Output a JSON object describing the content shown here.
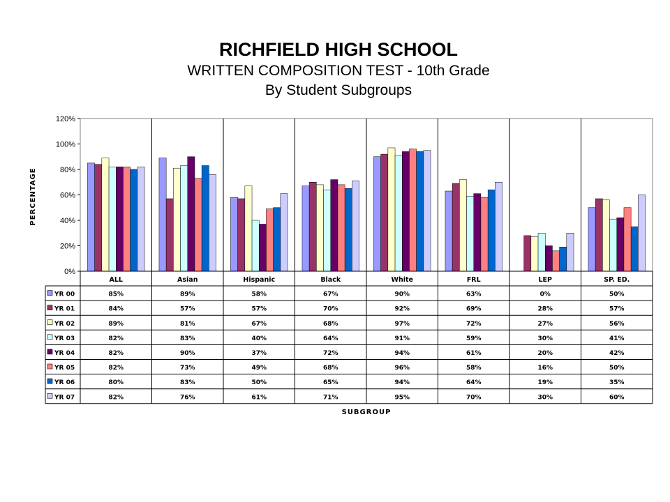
{
  "chart_data": {
    "type": "bar",
    "title": "RICHFIELD HIGH SCHOOL",
    "subtitle": "WRITTEN COMPOSITION TEST - 10th Grade",
    "subtitle2": "By Student Subgroups",
    "xlabel": "SUBGROUP",
    "ylabel": "PERCENTAGE",
    "ylim": [
      0,
      120
    ],
    "yticks": [
      "0%",
      "20%",
      "40%",
      "60%",
      "80%",
      "100%",
      "120%"
    ],
    "grid": "vertical category separators",
    "legend": "data-table",
    "categories": [
      "ALL",
      "Asian",
      "Hispanic",
      "Black",
      "White",
      "FRL",
      "LEP",
      "SP. ED."
    ],
    "series": [
      {
        "name": "YR 00",
        "color": "#9999ff",
        "values": [
          85,
          89,
          58,
          67,
          90,
          63,
          0,
          50
        ],
        "labels": [
          "85%",
          "89%",
          "58%",
          "67%",
          "90%",
          "63%",
          "0%",
          "50%"
        ]
      },
      {
        "name": "YR 01",
        "color": "#993366",
        "values": [
          84,
          57,
          57,
          70,
          92,
          69,
          28,
          57
        ],
        "labels": [
          "84%",
          "57%",
          "57%",
          "70%",
          "92%",
          "69%",
          "28%",
          "57%"
        ]
      },
      {
        "name": "YR 02",
        "color": "#ffffcc",
        "values": [
          89,
          81,
          67,
          68,
          97,
          72,
          27,
          56
        ],
        "labels": [
          "89%",
          "81%",
          "67%",
          "68%",
          "97%",
          "72%",
          "27%",
          "56%"
        ]
      },
      {
        "name": "YR 03",
        "color": "#ccffff",
        "values": [
          82,
          83,
          40,
          64,
          91,
          59,
          30,
          41
        ],
        "labels": [
          "82%",
          "83%",
          "40%",
          "64%",
          "91%",
          "59%",
          "30%",
          "41%"
        ]
      },
      {
        "name": "YR 04",
        "color": "#660066",
        "values": [
          82,
          90,
          37,
          72,
          94,
          61,
          20,
          42
        ],
        "labels": [
          "82%",
          "90%",
          "37%",
          "72%",
          "94%",
          "61%",
          "20%",
          "42%"
        ]
      },
      {
        "name": "YR 05",
        "color": "#ff8080",
        "values": [
          82,
          73,
          49,
          68,
          96,
          58,
          16,
          50
        ],
        "labels": [
          "82%",
          "73%",
          "49%",
          "68%",
          "96%",
          "58%",
          "16%",
          "50%"
        ]
      },
      {
        "name": "YR 06",
        "color": "#0066cc",
        "values": [
          80,
          83,
          50,
          65,
          94,
          64,
          19,
          35
        ],
        "labels": [
          "80%",
          "83%",
          "50%",
          "65%",
          "94%",
          "64%",
          "19%",
          "35%"
        ]
      },
      {
        "name": "YR 07",
        "color": "#ccccff",
        "values": [
          82,
          76,
          61,
          71,
          95,
          70,
          30,
          60
        ],
        "labels": [
          "82%",
          "76%",
          "61%",
          "71%",
          "95%",
          "70%",
          "30%",
          "60%"
        ]
      }
    ]
  }
}
